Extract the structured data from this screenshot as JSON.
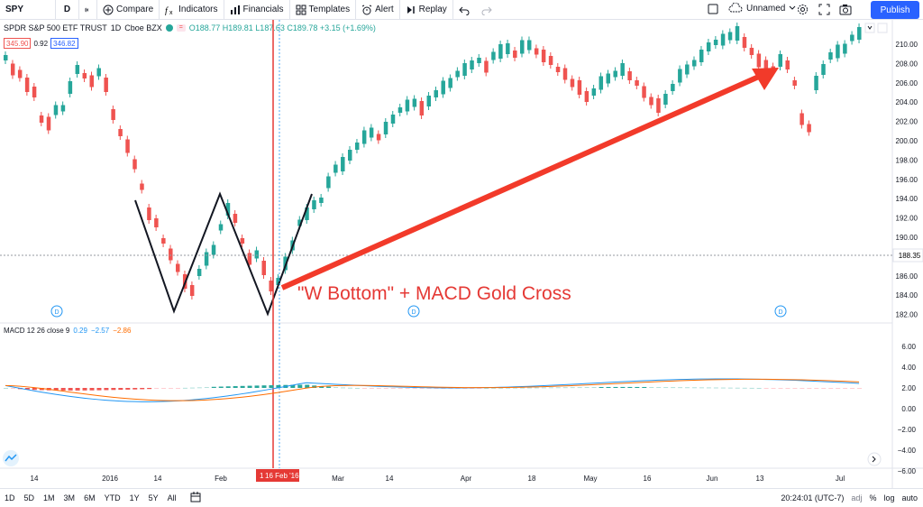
{
  "toolbar": {
    "symbol": "SPY",
    "interval": "D",
    "compare": "Compare",
    "indicators": "Indicators",
    "financials": "Financials",
    "templates": "Templates",
    "alert": "Alert",
    "replay": "Replay",
    "layout_name": "Unnamed",
    "publish": "Publish"
  },
  "legend": {
    "title": "SPDR S&P 500 ETF TRUST",
    "interval": "1D",
    "exchange": "Cboe BZX",
    "ohlc": "O188.77  H189.81  L187.63  C189.78  +3.15 (+1.69%)",
    "bid": "345.90",
    "spread": "0.92",
    "ask": "346.82"
  },
  "macd_legend": {
    "name": "MACD 12 26 close 9",
    "v1": "0.29",
    "v2": "−2.57",
    "v3": "−2.86"
  },
  "annotation": "\"W Bottom\" + MACD Gold Cross",
  "price_axis": [
    "210.00",
    "208.00",
    "206.00",
    "204.00",
    "202.00",
    "200.00",
    "198.00",
    "196.00",
    "194.00",
    "192.00",
    "190.00",
    "188.00",
    "186.00",
    "184.00",
    "182.00"
  ],
  "current_price": "188.35",
  "macd_axis": [
    "6.00",
    "4.00",
    "2.00",
    "0.00",
    "−2.00",
    "−4.00",
    "−6.00"
  ],
  "time_axis": [
    "14",
    "2016",
    "14",
    "Feb",
    "Mar",
    "14",
    "Apr",
    "18",
    "May",
    "16",
    "Jun",
    "13",
    "Jul"
  ],
  "crosshair_date": "16 Feb '16",
  "crosshair_day": "1",
  "dividend_marker": "D",
  "timeframes": [
    "1D",
    "5D",
    "1M",
    "3M",
    "6M",
    "YTD",
    "1Y",
    "5Y",
    "All"
  ],
  "clock": "20:24:01 (UTC-7)",
  "scale_options": [
    "adj",
    "%",
    "log",
    "auto"
  ],
  "colors": {
    "up": "#26a69a",
    "down": "#ef5350",
    "arrow": "#f23a2a",
    "macd": "#2196f3",
    "signal": "#ff6d00"
  }
}
